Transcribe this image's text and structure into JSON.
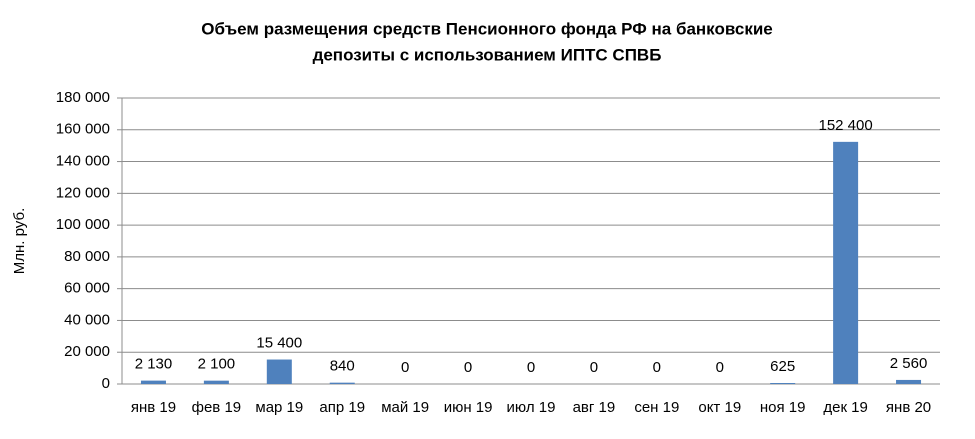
{
  "chart_data": {
    "type": "bar",
    "title": [
      "Объем размещения средств Пенсионного фонда РФ  на банковские",
      "депозиты с использованием ИПТС СПВБ"
    ],
    "y_label": "Млн. руб.",
    "categories": [
      "янв 19",
      "фев 19",
      "мар 19",
      "апр 19",
      "май 19",
      "июн 19",
      "июл 19",
      "авг 19",
      "сен 19",
      "окт 19",
      "ноя 19",
      "дек 19",
      "янв 20"
    ],
    "values": [
      2130,
      2100,
      15400,
      840,
      0,
      0,
      0,
      0,
      0,
      0,
      625,
      152400,
      2560
    ],
    "value_labels": [
      "2 130",
      "2 100",
      "15 400",
      "840",
      "0",
      "0",
      "0",
      "0",
      "0",
      "0",
      "625",
      "152 400",
      "2 560"
    ],
    "color": "#4f81bd",
    "ylim": [
      0,
      180000
    ],
    "yticks": [
      0,
      {
        "value": 20000,
        "label": "20 000"
      },
      {
        "value": 40000,
        "label": "40 000"
      },
      {
        "value": 60000,
        "label": "60 000"
      },
      {
        "value": 80000,
        "label": "80 000"
      },
      {
        "value": 100000,
        "label": "100 000"
      },
      {
        "value": 120000,
        "label": "120 000"
      },
      {
        "value": 140000,
        "label": "140 000"
      },
      {
        "value": 160000,
        "label": "160 000"
      },
      {
        "value": 180000,
        "label": "180 000"
      }
    ],
    "grid": true
  }
}
